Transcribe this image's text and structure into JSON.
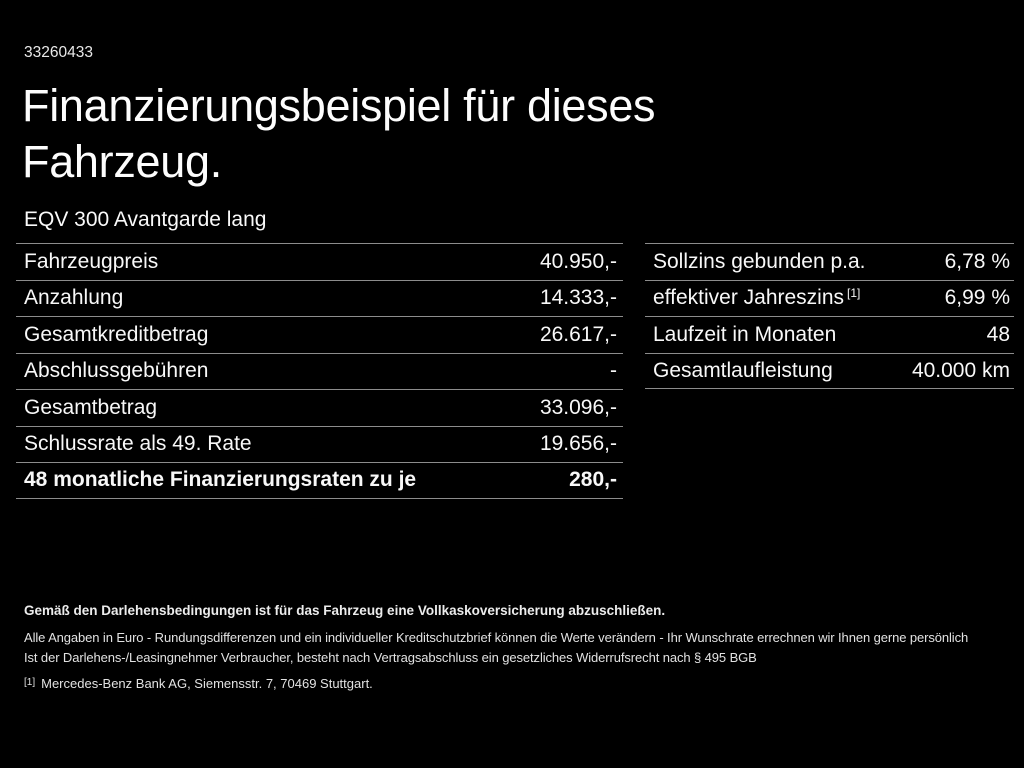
{
  "page": {
    "doc_id": "33260433",
    "title_line1": "Finanzierungsbeispiel für dieses",
    "title_line2": "Fahrzeug.",
    "vehicle_name": "EQV 300 Avantgarde lang"
  },
  "financing_table": {
    "rows": [
      {
        "label": "Fahrzeugpreis",
        "value": "40.950,-"
      },
      {
        "label": "Anzahlung",
        "value": "14.333,-"
      },
      {
        "label": "Gesamtkreditbetrag",
        "value": "26.617,-"
      },
      {
        "label": "Abschlussgebühren",
        "value": "-"
      },
      {
        "label": "Gesamtbetrag",
        "value": "33.096,-"
      },
      {
        "label": "Schlussrate als 49. Rate",
        "value": "19.656,-"
      },
      {
        "label": "48 monatliche Finanzierungsraten zu je",
        "value": "280,-"
      }
    ]
  },
  "conditions_table": {
    "rows": [
      {
        "label": "Sollzins gebunden p.a.",
        "value": "6,78 %"
      },
      {
        "label": "effektiver Jahreszins",
        "sup": "[1]",
        "value": "6,99 %"
      },
      {
        "label": "Laufzeit in Monaten",
        "value": "48"
      },
      {
        "label": "Gesamtlaufleistung",
        "value": "40.000 km"
      }
    ]
  },
  "footer": {
    "insurance_note": "Gemäß den Darlehensbedingungen ist für das Fahrzeug eine Vollkaskoversicherung abzuschließen.",
    "note_line1": "Alle Angaben in Euro - Rundungsdifferenzen und ein individueller Kreditschutzbrief können die Werte verändern - Ihr Wunschrate errechnen wir Ihnen gerne persönlich",
    "note_line2": "Ist der Darlehens-/Leasingnehmer Verbraucher, besteht nach Vertragsabschluss ein gesetzliches Widerrufsrecht nach § 495 BGB",
    "footnote_marker": "[1]",
    "footnote_text": "Mercedes-Benz Bank AG, Siemensstr. 7, 70469 Stuttgart."
  },
  "colors": {
    "background": "#000000",
    "text": "#f5f5f5",
    "divider": "#8c8c8c"
  }
}
